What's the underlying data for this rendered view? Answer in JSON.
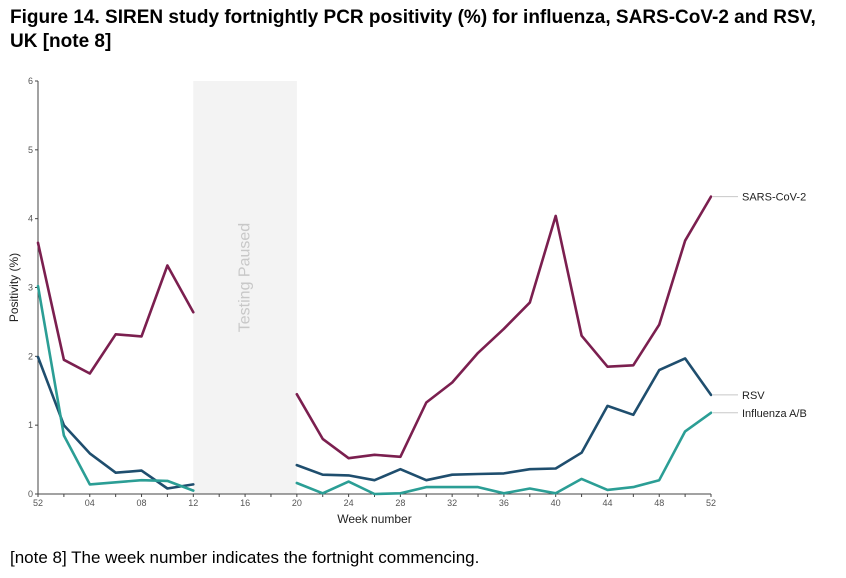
{
  "title": "Figure 14. SIREN study fortnightly PCR positivity (%) for influenza, SARS-CoV-2 and RSV, UK [note 8]",
  "footnote": "[note 8] The week number indicates the fortnight commencing.",
  "chart_data": {
    "type": "line",
    "xlabel": "Week number",
    "ylabel": "Positivity (%)",
    "ylim": [
      0,
      6
    ],
    "yticks": [
      "0",
      "1",
      "2",
      "3",
      "4",
      "5",
      "6"
    ],
    "x_positions": [
      52,
      2,
      4,
      6,
      8,
      10,
      12,
      14,
      16,
      18,
      20,
      22,
      24,
      26,
      28,
      30,
      32,
      34,
      36,
      38,
      40,
      42,
      44,
      46,
      48,
      50,
      52
    ],
    "xtick_labels": [
      "52",
      "",
      "04",
      "",
      "08",
      "",
      "12",
      "",
      "16",
      "",
      "20",
      "",
      "24",
      "",
      "28",
      "",
      "32",
      "",
      "36",
      "",
      "40",
      "",
      "44",
      "",
      "48",
      "",
      "52"
    ],
    "shaded_region": {
      "label": "Testing Paused",
      "from_week": 12,
      "to_week": 20
    },
    "series": [
      {
        "name": "SARS-CoV-2",
        "color": "#7b1f4f",
        "values": [
          3.65,
          1.95,
          1.75,
          2.32,
          2.29,
          3.32,
          2.64,
          null,
          null,
          null,
          1.45,
          0.8,
          0.52,
          0.57,
          0.54,
          1.33,
          1.62,
          2.05,
          2.4,
          2.78,
          4.04,
          2.3,
          1.85,
          1.87,
          2.46,
          3.68,
          4.32
        ]
      },
      {
        "name": "RSV",
        "color": "#1f4e6e",
        "values": [
          1.99,
          1.0,
          0.59,
          0.31,
          0.34,
          0.08,
          0.14,
          null,
          null,
          null,
          0.42,
          0.28,
          0.27,
          0.2,
          0.36,
          0.2,
          0.28,
          0.29,
          0.3,
          0.36,
          0.37,
          0.6,
          1.28,
          1.15,
          1.8,
          1.97,
          1.44
        ]
      },
      {
        "name": "Influenza A/B",
        "color": "#2b9e95",
        "values": [
          3.02,
          0.85,
          0.14,
          0.17,
          0.2,
          0.19,
          0.05,
          null,
          null,
          null,
          0.16,
          0.01,
          0.18,
          0.0,
          0.01,
          0.1,
          0.1,
          0.1,
          0.01,
          0.08,
          0.01,
          0.22,
          0.06,
          0.1,
          0.2,
          0.91,
          1.18
        ]
      }
    ]
  }
}
